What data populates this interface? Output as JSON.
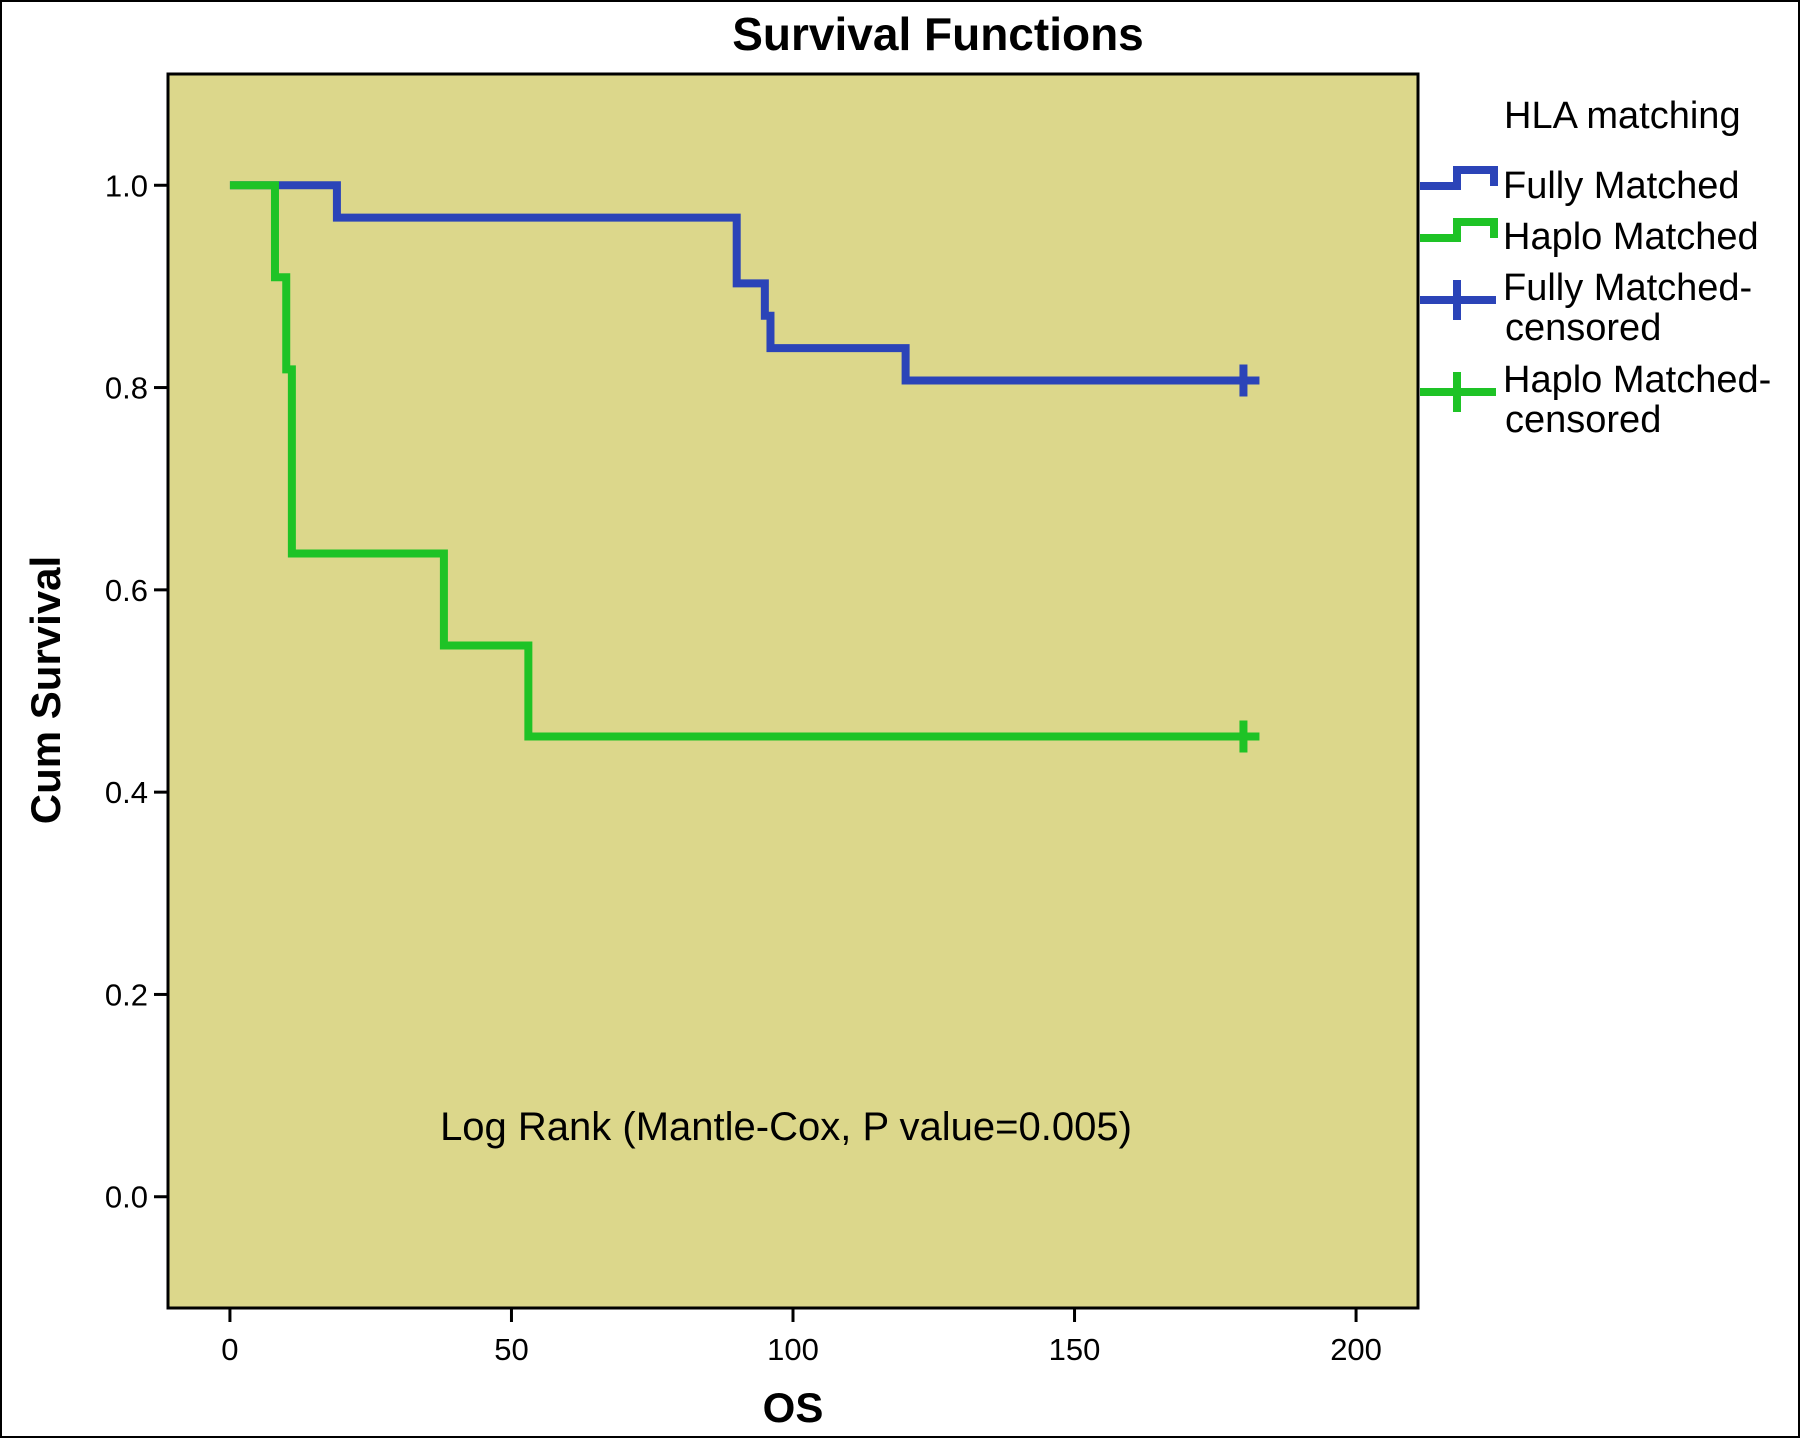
{
  "chart_data": {
    "type": "line",
    "title": "Survival Functions",
    "xlabel": "OS",
    "ylabel": "Cum Survival",
    "xlim": [
      -11,
      211
    ],
    "ylim": [
      -0.11,
      1.11
    ],
    "x_ticks": [
      0,
      50,
      100,
      150,
      200
    ],
    "x_tick_labels": [
      "0",
      "50",
      "100",
      "150",
      "200"
    ],
    "y_ticks": [
      0.0,
      0.2,
      0.4,
      0.6,
      0.8,
      1.0
    ],
    "y_tick_labels": [
      "0.0",
      "0.2",
      "0.4",
      "0.6",
      "0.8",
      "1.0"
    ],
    "grid": false,
    "plot_background": "#dcd78b",
    "legend": {
      "title": "HLA matching",
      "placement": "right",
      "entries": [
        {
          "label": "Fully Matched",
          "color": "#2b44b8",
          "marker": "step"
        },
        {
          "label": "Haplo Matched",
          "color": "#1ec326",
          "marker": "step"
        },
        {
          "label_lines": [
            "Fully Matched-",
            "censored"
          ],
          "color": "#2b44b8",
          "marker": "plus"
        },
        {
          "label_lines": [
            "Haplo Matched-",
            "censored"
          ],
          "color": "#1ec326",
          "marker": "plus"
        }
      ]
    },
    "annotation": "Log Rank (Mantle-Cox, P value=0.005)",
    "series": [
      {
        "name": "Fully Matched",
        "color": "#2b44b8",
        "x": [
          0,
          19,
          90,
          95,
          96,
          120,
          180
        ],
        "y": [
          1.0,
          0.968,
          0.903,
          0.871,
          0.839,
          0.807,
          0.807
        ],
        "censored": [
          {
            "x": 180,
            "y": 0.807
          }
        ]
      },
      {
        "name": "Haplo Matched",
        "color": "#1ec326",
        "x": [
          0,
          8,
          10,
          11,
          38,
          53,
          180
        ],
        "y": [
          1.0,
          0.909,
          0.818,
          0.636,
          0.545,
          0.455,
          0.455
        ],
        "censored": [
          {
            "x": 180,
            "y": 0.455
          }
        ]
      }
    ]
  }
}
